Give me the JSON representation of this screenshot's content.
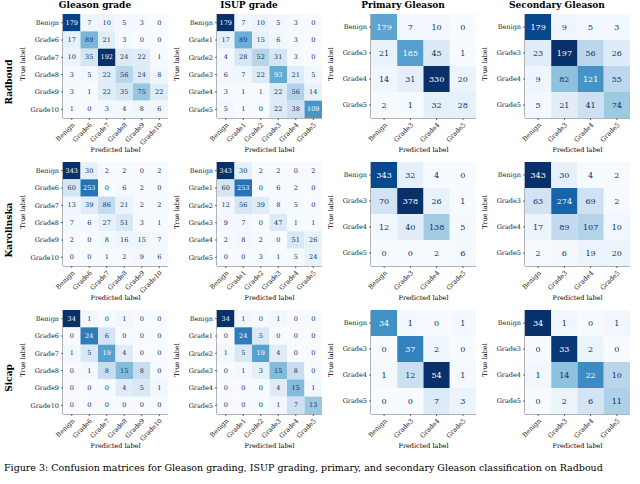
{
  "caption": "Figure 3: Confusion matrices for Gleason grading, ISUP grading, primary, and secondary Gleason classification on Radboud",
  "columns": [
    "Gleason grade",
    "ISUP grade",
    "Primary Gleason",
    "Secondary Gleason"
  ],
  "rows": [
    "Radboud",
    "Karolinska",
    "Sicap"
  ],
  "x_label": "Predicted label",
  "y_label": "True label",
  "chart_data": [
    {
      "type": "heatmap",
      "categories": [
        "Benign",
        "Grade6",
        "Grade7",
        "Grade8",
        "Grade9",
        "Grade10"
      ],
      "cells": [
        [
          179,
          7,
          10,
          5,
          3,
          0
        ],
        [
          17,
          89,
          21,
          3,
          0,
          0
        ],
        [
          10,
          35,
          192,
          24,
          22,
          1
        ],
        [
          3,
          5,
          22,
          56,
          24,
          8
        ],
        [
          3,
          1,
          22,
          35,
          75,
          22
        ],
        [
          1,
          0,
          3,
          4,
          8,
          6
        ]
      ]
    },
    {
      "type": "heatmap",
      "categories": [
        "Benign",
        "Grade1",
        "Grade2",
        "Grade3",
        "Grade4",
        "Grade5"
      ],
      "cells": [
        [
          179,
          7,
          10,
          5,
          3,
          0
        ],
        [
          17,
          89,
          15,
          6,
          3,
          0
        ],
        [
          4,
          28,
          52,
          31,
          3,
          0
        ],
        [
          6,
          7,
          22,
          93,
          21,
          5
        ],
        [
          3,
          1,
          1,
          22,
          56,
          14
        ],
        [
          5,
          1,
          0,
          22,
          38,
          109
        ]
      ]
    },
    {
      "type": "heatmap",
      "categories": [
        "Benign",
        "Grade3",
        "Grade4",
        "Grade5"
      ],
      "cells": [
        [
          179,
          7,
          10,
          0
        ],
        [
          21,
          185,
          45,
          1
        ],
        [
          14,
          31,
          330,
          20
        ],
        [
          2,
          1,
          32,
          28
        ]
      ]
    },
    {
      "type": "heatmap",
      "categories": [
        "Benign",
        "Grade3",
        "Grade4",
        "Grade5"
      ],
      "cells": [
        [
          179,
          9,
          5,
          3
        ],
        [
          23,
          197,
          56,
          26
        ],
        [
          9,
          82,
          121,
          55
        ],
        [
          5,
          21,
          41,
          74
        ]
      ]
    },
    {
      "type": "heatmap",
      "categories": [
        "Benign",
        "Grade6",
        "Grade7",
        "Grade8",
        "Grade9",
        "Grade10"
      ],
      "cells": [
        [
          343,
          30,
          2,
          2,
          0,
          2
        ],
        [
          60,
          253,
          0,
          6,
          2,
          0
        ],
        [
          13,
          39,
          86,
          21,
          2,
          2
        ],
        [
          7,
          6,
          27,
          51,
          3,
          1
        ],
        [
          2,
          0,
          8,
          16,
          15,
          7
        ],
        [
          0,
          0,
          1,
          2,
          9,
          6
        ]
      ]
    },
    {
      "type": "heatmap",
      "categories": [
        "Benign",
        "Grade1",
        "Grade2",
        "Grade3",
        "Grade4",
        "Grade5"
      ],
      "cells": [
        [
          343,
          30,
          2,
          2,
          0,
          2
        ],
        [
          60,
          253,
          0,
          6,
          2,
          0
        ],
        [
          12,
          56,
          39,
          8,
          5,
          0
        ],
        [
          9,
          7,
          0,
          47,
          1,
          1
        ],
        [
          2,
          8,
          2,
          0,
          51,
          26
        ],
        [
          0,
          0,
          3,
          1,
          5,
          24
        ]
      ]
    },
    {
      "type": "heatmap",
      "categories": [
        "Benign",
        "Grade3",
        "Grade4",
        "Grade5"
      ],
      "cells": [
        [
          343,
          32,
          4,
          0
        ],
        [
          70,
          378,
          26,
          1
        ],
        [
          12,
          40,
          138,
          5
        ],
        [
          0,
          0,
          2,
          6
        ]
      ]
    },
    {
      "type": "heatmap",
      "categories": [
        "Benign",
        "Grade3",
        "Grade4",
        "Grade5"
      ],
      "cells": [
        [
          343,
          30,
          4,
          2
        ],
        [
          63,
          274,
          69,
          2
        ],
        [
          17,
          89,
          107,
          10
        ],
        [
          2,
          6,
          19,
          20
        ]
      ]
    },
    {
      "type": "heatmap",
      "categories": [
        "Benign",
        "Grade6",
        "Grade7",
        "Grade8",
        "Grade9",
        "Grade10"
      ],
      "cells": [
        [
          34,
          1,
          0,
          1,
          0,
          0
        ],
        [
          0,
          24,
          6,
          0,
          0,
          0
        ],
        [
          1,
          5,
          19,
          4,
          0,
          0
        ],
        [
          0,
          1,
          8,
          15,
          8,
          0
        ],
        [
          0,
          0,
          0,
          4,
          5,
          1
        ],
        [
          0,
          0,
          0,
          0,
          0,
          0
        ]
      ]
    },
    {
      "type": "heatmap",
      "categories": [
        "Benign",
        "Grade1",
        "Grade2",
        "Grade3",
        "Grade4",
        "Grade5"
      ],
      "cells": [
        [
          34,
          1,
          0,
          1,
          0,
          0
        ],
        [
          0,
          24,
          5,
          0,
          0,
          0
        ],
        [
          1,
          5,
          19,
          4,
          0,
          0
        ],
        [
          0,
          1,
          3,
          15,
          8,
          0
        ],
        [
          0,
          0,
          0,
          4,
          15,
          1
        ],
        [
          0,
          0,
          0,
          1,
          7,
          13
        ]
      ]
    },
    {
      "type": "heatmap",
      "categories": [
        "Benign",
        "Grade3",
        "Grade4",
        "Grade5"
      ],
      "cells": [
        [
          34,
          1,
          0,
          1
        ],
        [
          0,
          37,
          2,
          0
        ],
        [
          1,
          12,
          54,
          1
        ],
        [
          0,
          0,
          7,
          3
        ]
      ]
    },
    {
      "type": "heatmap",
      "categories": [
        "Benign",
        "Grade3",
        "Grade4",
        "Grade5"
      ],
      "cells": [
        [
          34,
          1,
          0,
          1
        ],
        [
          0,
          33,
          2,
          0
        ],
        [
          1,
          14,
          22,
          10
        ],
        [
          0,
          2,
          6,
          11
        ]
      ]
    }
  ]
}
